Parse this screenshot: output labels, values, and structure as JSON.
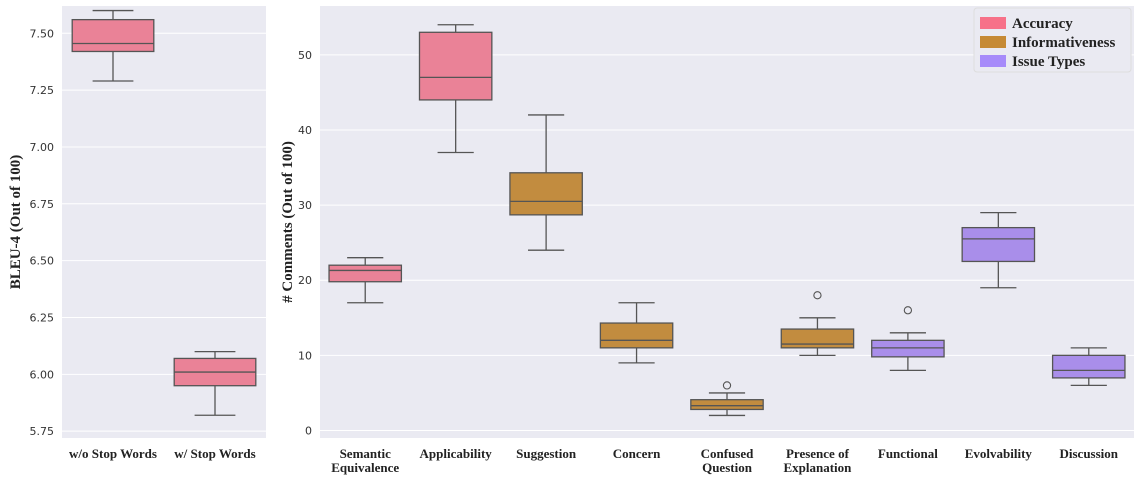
{
  "chart_data": [
    {
      "type": "box",
      "ylabel": "BLEU-4 (Out of 100)",
      "ylim": [
        5.72,
        7.62
      ],
      "yticks": [
        "5.75",
        "6.00",
        "6.25",
        "6.50",
        "6.75",
        "7.00",
        "7.25",
        "7.50"
      ],
      "grid": true,
      "categories": [
        "w/o Stop Words",
        "w/ Stop Words"
      ],
      "boxes": [
        {
          "category": "w/o Stop Words",
          "min": 7.29,
          "q1": 7.42,
          "median": 7.455,
          "q3": 7.56,
          "max": 7.6,
          "color": "#ea8297",
          "outliers": []
        },
        {
          "category": "w/ Stop Words",
          "min": 5.82,
          "q1": 5.95,
          "median": 6.01,
          "q3": 6.07,
          "max": 6.1,
          "color": "#ea8297",
          "outliers": []
        }
      ]
    },
    {
      "type": "box",
      "ylabel": "# Comments (Out of 100)",
      "ylim": [
        -1,
        56.5
      ],
      "yticks": [
        "0",
        "10",
        "20",
        "30",
        "40",
        "50"
      ],
      "grid": true,
      "legend_position": "top-right",
      "legend": [
        {
          "label": "Accuracy",
          "color": "#f77189"
        },
        {
          "label": "Informativeness",
          "color": "#c68a35"
        },
        {
          "label": "Issue Types",
          "color": "#a78bfa"
        }
      ],
      "categories": [
        "Semantic\nEquivalence",
        "Applicability",
        "Suggestion",
        "Concern",
        "Confused\nQuestion",
        "Presence of\nExplanation",
        "Functional",
        "Evolvability",
        "Discussion"
      ],
      "boxes": [
        {
          "category": "Semantic Equivalence",
          "min": 17,
          "q1": 19.8,
          "median": 21.3,
          "q3": 22,
          "max": 23,
          "color": "#ea8297",
          "outliers": []
        },
        {
          "category": "Applicability",
          "min": 37,
          "q1": 44,
          "median": 47,
          "q3": 53,
          "max": 54,
          "color": "#ea8297",
          "outliers": []
        },
        {
          "category": "Suggestion",
          "min": 24,
          "q1": 28.7,
          "median": 30.5,
          "q3": 34.3,
          "max": 42,
          "color": "#c28c3f",
          "outliers": []
        },
        {
          "category": "Concern",
          "min": 9,
          "q1": 11,
          "median": 12,
          "q3": 14.3,
          "max": 17,
          "color": "#c28c3f",
          "outliers": []
        },
        {
          "category": "Confused Question",
          "min": 2,
          "q1": 2.8,
          "median": 3.3,
          "q3": 4.1,
          "max": 5,
          "color": "#c28c3f",
          "outliers": [
            6
          ]
        },
        {
          "category": "Presence of Explanation",
          "min": 10,
          "q1": 11,
          "median": 11.5,
          "q3": 13.5,
          "max": 15,
          "color": "#c28c3f",
          "outliers": [
            18
          ]
        },
        {
          "category": "Functional",
          "min": 8,
          "q1": 9.8,
          "median": 11,
          "q3": 12,
          "max": 13,
          "color": "#a98eea",
          "outliers": [
            16
          ]
        },
        {
          "category": "Evolvability",
          "min": 19,
          "q1": 22.5,
          "median": 25.5,
          "q3": 27,
          "max": 29,
          "color": "#a98eea",
          "outliers": []
        },
        {
          "category": "Discussion",
          "min": 6,
          "q1": 7,
          "median": 8,
          "q3": 10,
          "max": 11,
          "color": "#a98eea",
          "outliers": []
        }
      ]
    }
  ]
}
